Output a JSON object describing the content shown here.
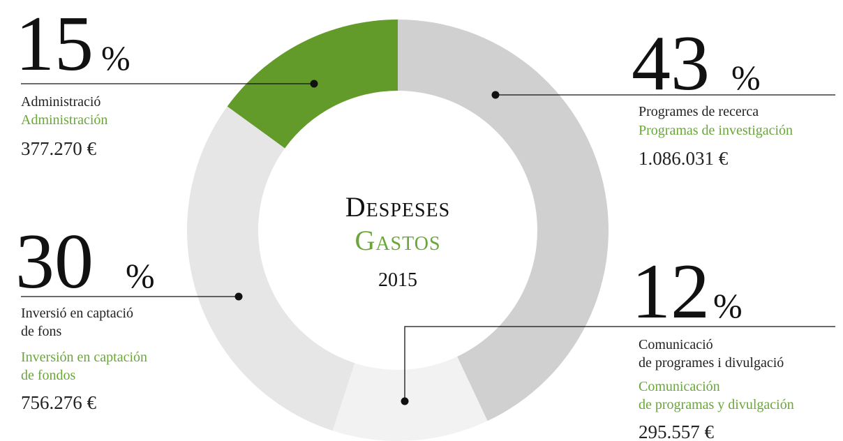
{
  "chart_data": {
    "type": "pie",
    "donut": true,
    "title": "Despeses",
    "subtitle": "Gastos",
    "year": "2015",
    "unit": "%",
    "categories_ca": [
      [
        "Programes de recerca"
      ],
      [
        "Comunicació",
        "de programes i divulgació"
      ],
      [
        "Inversió en captació",
        "de fons"
      ],
      [
        "Administració"
      ]
    ],
    "categories_es": [
      [
        "Programas de investigación"
      ],
      [
        "Comunicación",
        "de programas y divulgación"
      ],
      [
        "Inversión en captación",
        "de fondos"
      ],
      [
        "Administración"
      ]
    ],
    "values": [
      43,
      12,
      30,
      15
    ],
    "amounts": [
      "1.086.031 €",
      "295.557 €",
      "756.276 €",
      "377.270 €"
    ],
    "colors": [
      "#d0d0d0",
      "#f2f2f2",
      "#e6e6e6",
      "#629b2a"
    ]
  }
}
